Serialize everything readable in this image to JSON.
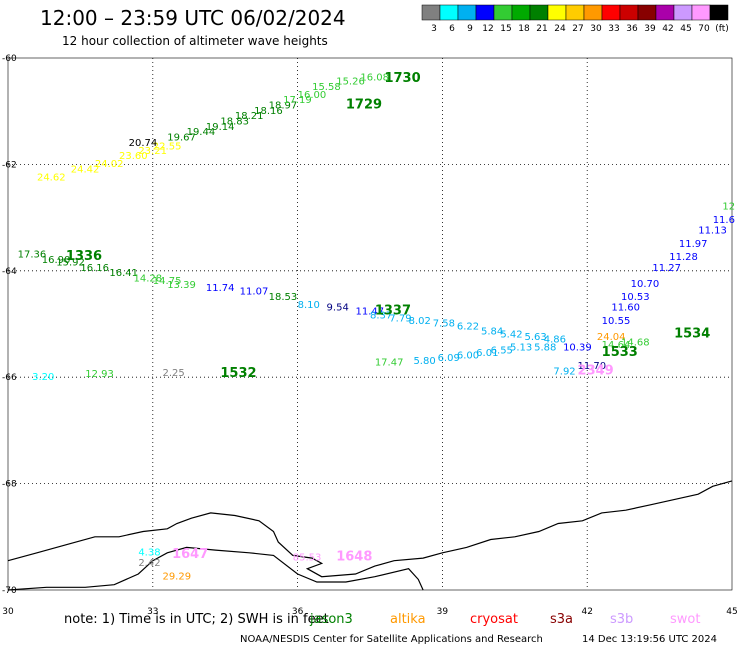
{
  "header": {
    "title": "12:00 – 23:59 UTC 06/02/2024",
    "subtitle": "12 hour collection of altimeter wave heights"
  },
  "colorbar": {
    "colors": [
      "#808080",
      "#00ffff",
      "#00b0f0",
      "#0000ff",
      "#33cc33",
      "#00aa00",
      "#008000",
      "#ffff00",
      "#ffcc00",
      "#ff9900",
      "#ff0000",
      "#cc0000",
      "#880000",
      "#aa00aa",
      "#cc99ff",
      "#ff99ff",
      "#000000"
    ],
    "labels": [
      "3",
      "6",
      "9",
      "12",
      "15",
      "18",
      "21",
      "24",
      "27",
      "30",
      "33",
      "36",
      "39",
      "42",
      "45",
      "70",
      "(ft)"
    ]
  },
  "axes": {
    "lon_min": 30,
    "lon_max": 45,
    "lat_min": -70,
    "lat_max": -60,
    "x_ticks": [
      "30",
      "33",
      "36",
      "39",
      "42",
      "45"
    ],
    "y_ticks": [
      "-60",
      "-62",
      "-64",
      "-66",
      "-68",
      "-70"
    ]
  },
  "observations": [
    {
      "lon": 30.6,
      "lat": -62.3,
      "text": "24.62",
      "color": "#ffff00"
    },
    {
      "lon": 31.3,
      "lat": -62.15,
      "text": "24.42",
      "color": "#ffff00"
    },
    {
      "lon": 31.8,
      "lat": -62.05,
      "text": "24.02",
      "color": "#ffff00"
    },
    {
      "lon": 32.3,
      "lat": -61.9,
      "text": "23.60",
      "color": "#ffff00"
    },
    {
      "lon": 32.7,
      "lat": -61.8,
      "text": "23.21",
      "color": "#ffff00"
    },
    {
      "lon": 33.0,
      "lat": -61.72,
      "text": "22.55",
      "color": "#ffff00"
    },
    {
      "lon": 32.5,
      "lat": -61.65,
      "text": "20.74",
      "color": "#000000"
    },
    {
      "lon": 33.3,
      "lat": -61.55,
      "text": "19.67",
      "color": "#008000"
    },
    {
      "lon": 33.7,
      "lat": -61.45,
      "text": "19.44",
      "color": "#008000"
    },
    {
      "lon": 34.1,
      "lat": -61.35,
      "text": "19.14",
      "color": "#008000"
    },
    {
      "lon": 34.4,
      "lat": -61.25,
      "text": "18.83",
      "color": "#008000"
    },
    {
      "lon": 34.7,
      "lat": -61.15,
      "text": "18.21",
      "color": "#008000"
    },
    {
      "lon": 35.1,
      "lat": -61.05,
      "text": "18.16",
      "color": "#008000"
    },
    {
      "lon": 35.4,
      "lat": -60.95,
      "text": "18.97",
      "color": "#008000"
    },
    {
      "lon": 35.7,
      "lat": -60.85,
      "text": "17.19",
      "color": "#33cc33"
    },
    {
      "lon": 36.0,
      "lat": -60.75,
      "text": "16.00",
      "color": "#33cc33"
    },
    {
      "lon": 36.3,
      "lat": -60.6,
      "text": "15.58",
      "color": "#33cc33"
    },
    {
      "lon": 36.8,
      "lat": -60.5,
      "text": "15.26",
      "color": "#33cc33"
    },
    {
      "lon": 37.3,
      "lat": -60.42,
      "text": "16.08",
      "color": "#33cc33"
    },
    {
      "lon": 44.8,
      "lat": -62.85,
      "text": "12",
      "color": "#33cc33"
    },
    {
      "lon": 44.6,
      "lat": -63.1,
      "text": "11.6",
      "color": "#0000ff"
    },
    {
      "lon": 44.3,
      "lat": -63.3,
      "text": "11.13",
      "color": "#0000ff"
    },
    {
      "lon": 43.9,
      "lat": -63.55,
      "text": "11.97",
      "color": "#0000ff"
    },
    {
      "lon": 43.7,
      "lat": -63.8,
      "text": "11.28",
      "color": "#0000ff"
    },
    {
      "lon": 43.35,
      "lat": -64.0,
      "text": "11.27",
      "color": "#0000ff"
    },
    {
      "lon": 42.9,
      "lat": -64.3,
      "text": "10.70",
      "color": "#0000ff"
    },
    {
      "lon": 42.7,
      "lat": -64.55,
      "text": "10.53",
      "color": "#0000ff"
    },
    {
      "lon": 42.5,
      "lat": -64.75,
      "text": "11.60",
      "color": "#0000ff"
    },
    {
      "lon": 42.3,
      "lat": -65.0,
      "text": "10.55",
      "color": "#0000ff"
    },
    {
      "lon": 42.2,
      "lat": -65.3,
      "text": "24.04",
      "color": "#ff9900"
    },
    {
      "lon": 42.7,
      "lat": -65.4,
      "text": "14.68",
      "color": "#33cc33"
    },
    {
      "lon": 42.3,
      "lat": -65.45,
      "text": "14.64",
      "color": "#33cc33"
    },
    {
      "lon": 41.5,
      "lat": -65.5,
      "text": "10.39",
      "color": "#0000ff"
    },
    {
      "lon": 41.8,
      "lat": -65.85,
      "text": "11.70",
      "color": "#000080"
    },
    {
      "lon": 41.3,
      "lat": -65.95,
      "text": "7.92",
      "color": "#00b0f0"
    },
    {
      "lon": 30.2,
      "lat": -63.75,
      "text": "17.36",
      "color": "#008000"
    },
    {
      "lon": 30.7,
      "lat": -63.85,
      "text": "16.90",
      "color": "#008000"
    },
    {
      "lon": 31.0,
      "lat": -63.9,
      "text": "15.92",
      "color": "#008000"
    },
    {
      "lon": 31.5,
      "lat": -64.0,
      "text": "16.16",
      "color": "#008000"
    },
    {
      "lon": 32.1,
      "lat": -64.1,
      "text": "16.41",
      "color": "#008000"
    },
    {
      "lon": 32.6,
      "lat": -64.2,
      "text": "14.28",
      "color": "#33cc33"
    },
    {
      "lon": 33.0,
      "lat": -64.25,
      "text": "14.75",
      "color": "#33cc33"
    },
    {
      "lon": 33.3,
      "lat": -64.32,
      "text": "13.39",
      "color": "#33cc33"
    },
    {
      "lon": 34.1,
      "lat": -64.38,
      "text": "11.74",
      "color": "#0000ff"
    },
    {
      "lon": 34.8,
      "lat": -64.45,
      "text": "11.07",
      "color": "#0000ff"
    },
    {
      "lon": 35.4,
      "lat": -64.55,
      "text": "18.53",
      "color": "#008000"
    },
    {
      "lon": 36.0,
      "lat": -64.7,
      "text": "8.10",
      "color": "#00b0f0"
    },
    {
      "lon": 36.6,
      "lat": -64.75,
      "text": "9.54",
      "color": "#000080"
    },
    {
      "lon": 37.2,
      "lat": -64.82,
      "text": "11.47",
      "color": "#0000ff"
    },
    {
      "lon": 37.5,
      "lat": -64.9,
      "text": "8.37",
      "color": "#00b0f0"
    },
    {
      "lon": 37.9,
      "lat": -64.95,
      "text": "7.79",
      "color": "#00b0f0"
    },
    {
      "lon": 38.3,
      "lat": -65.0,
      "text": "8.02",
      "color": "#00b0f0"
    },
    {
      "lon": 38.8,
      "lat": -65.05,
      "text": "7.58",
      "color": "#00b0f0"
    },
    {
      "lon": 39.3,
      "lat": -65.1,
      "text": "6.22",
      "color": "#00b0f0"
    },
    {
      "lon": 39.8,
      "lat": -65.2,
      "text": "5.84",
      "color": "#00b0f0"
    },
    {
      "lon": 40.2,
      "lat": -65.25,
      "text": "5.42",
      "color": "#00b0f0"
    },
    {
      "lon": 40.7,
      "lat": -65.3,
      "text": "5.63",
      "color": "#00b0f0"
    },
    {
      "lon": 41.1,
      "lat": -65.35,
      "text": "4.86",
      "color": "#00b0f0"
    },
    {
      "lon": 40.4,
      "lat": -65.5,
      "text": "5.13",
      "color": "#00b0f0"
    },
    {
      "lon": 40.9,
      "lat": -65.5,
      "text": "5.88",
      "color": "#00b0f0"
    },
    {
      "lon": 40.0,
      "lat": -65.55,
      "text": "6.55",
      "color": "#00b0f0"
    },
    {
      "lon": 39.7,
      "lat": -65.6,
      "text": "6.01",
      "color": "#00b0f0"
    },
    {
      "lon": 39.3,
      "lat": -65.65,
      "text": "6.00",
      "color": "#00b0f0"
    },
    {
      "lon": 38.9,
      "lat": -65.7,
      "text": "6.09",
      "color": "#00b0f0"
    },
    {
      "lon": 38.4,
      "lat": -65.75,
      "text": "5.80",
      "color": "#00b0f0"
    },
    {
      "lon": 37.6,
      "lat": -65.78,
      "text": "17.47",
      "color": "#33cc33"
    },
    {
      "lon": 30.5,
      "lat": -66.05,
      "text": "3.20",
      "color": "#00ffff"
    },
    {
      "lon": 31.6,
      "lat": -66.0,
      "text": "12.93",
      "color": "#33cc33"
    },
    {
      "lon": 33.2,
      "lat": -65.98,
      "text": "2.25",
      "color": "#808080"
    },
    {
      "lon": 32.7,
      "lat": -69.35,
      "text": "4.38",
      "color": "#00ffff"
    },
    {
      "lon": 32.7,
      "lat": -69.55,
      "text": "2.42",
      "color": "#808080"
    },
    {
      "lon": 33.2,
      "lat": -69.8,
      "text": "29.29",
      "color": "#ff9900"
    },
    {
      "lon": 35.9,
      "lat": -69.45,
      "text": "85.53",
      "color": "#ff99ff"
    }
  ],
  "pass_labels": [
    {
      "lon": 37.8,
      "lat": -60.45,
      "text": "1730",
      "color": "#008000"
    },
    {
      "lon": 37.0,
      "lat": -60.95,
      "text": "1729",
      "color": "#008000"
    },
    {
      "lon": 31.2,
      "lat": -63.8,
      "text": "1336",
      "color": "#008000"
    },
    {
      "lon": 37.6,
      "lat": -64.82,
      "text": "1337",
      "color": "#008000"
    },
    {
      "lon": 42.3,
      "lat": -65.6,
      "text": "1533",
      "color": "#008000"
    },
    {
      "lon": 43.8,
      "lat": -65.25,
      "text": "1534",
      "color": "#008000"
    },
    {
      "lon": 34.4,
      "lat": -66.0,
      "text": "1532",
      "color": "#008000"
    },
    {
      "lon": 41.8,
      "lat": -65.95,
      "text": "2349",
      "color": "#ff99ff"
    },
    {
      "lon": 33.4,
      "lat": -69.4,
      "text": "1647",
      "color": "#ff99ff"
    },
    {
      "lon": 36.8,
      "lat": -69.45,
      "text": "1648",
      "color": "#ff99ff"
    }
  ],
  "coastline": [
    [
      30.0,
      -69.45
    ],
    [
      30.6,
      -69.3
    ],
    [
      31.2,
      -69.15
    ],
    [
      31.8,
      -69.0
    ],
    [
      32.3,
      -69.0
    ],
    [
      32.8,
      -68.9
    ],
    [
      33.3,
      -68.85
    ],
    [
      33.5,
      -68.75
    ],
    [
      33.8,
      -68.65
    ],
    [
      34.2,
      -68.55
    ],
    [
      34.7,
      -68.6
    ],
    [
      35.2,
      -68.7
    ],
    [
      35.5,
      -68.9
    ],
    [
      35.6,
      -69.1
    ],
    [
      35.9,
      -69.35
    ],
    [
      36.3,
      -69.4
    ],
    [
      36.5,
      -69.5
    ],
    [
      36.2,
      -69.6
    ],
    [
      36.5,
      -69.75
    ],
    [
      37.2,
      -69.7
    ],
    [
      37.6,
      -69.55
    ],
    [
      38.0,
      -69.45
    ],
    [
      38.6,
      -69.4
    ],
    [
      39.0,
      -69.3
    ],
    [
      39.5,
      -69.2
    ],
    [
      40.0,
      -69.05
    ],
    [
      40.5,
      -69.0
    ],
    [
      41.0,
      -68.9
    ],
    [
      41.4,
      -68.75
    ],
    [
      41.9,
      -68.7
    ],
    [
      42.3,
      -68.55
    ],
    [
      42.8,
      -68.5
    ],
    [
      43.3,
      -68.4
    ],
    [
      43.8,
      -68.3
    ],
    [
      44.3,
      -68.2
    ],
    [
      44.6,
      -68.05
    ],
    [
      45.0,
      -67.95
    ]
  ],
  "coastline_inner": [
    [
      30.0,
      -70.0
    ],
    [
      30.8,
      -69.95
    ],
    [
      31.6,
      -69.95
    ],
    [
      32.2,
      -69.9
    ],
    [
      32.7,
      -69.7
    ],
    [
      33.0,
      -69.45
    ],
    [
      33.3,
      -69.3
    ],
    [
      33.7,
      -69.2
    ],
    [
      34.3,
      -69.25
    ],
    [
      35.0,
      -69.3
    ],
    [
      35.5,
      -69.35
    ],
    [
      36.0,
      -69.7
    ],
    [
      36.4,
      -69.85
    ],
    [
      37.0,
      -69.85
    ],
    [
      37.6,
      -69.75
    ],
    [
      38.3,
      -69.6
    ],
    [
      38.5,
      -69.8
    ],
    [
      38.6,
      -70.0
    ]
  ],
  "footer": {
    "note": "note:  1) Time is in UTC;  2) SWH is in feet",
    "satellites": [
      {
        "name": "jason3",
        "color": "#008000"
      },
      {
        "name": "altika",
        "color": "#ff9900"
      },
      {
        "name": "cryosat",
        "color": "#ff0000"
      },
      {
        "name": "s3a",
        "color": "#880000"
      },
      {
        "name": "s3b",
        "color": "#cc99ff"
      },
      {
        "name": "swot",
        "color": "#ff99ff"
      }
    ],
    "credit": "NOAA/NESDIS Center for Satellite Applications and Research",
    "timestamp": "14 Dec 13:19:56 UTC 2024"
  }
}
